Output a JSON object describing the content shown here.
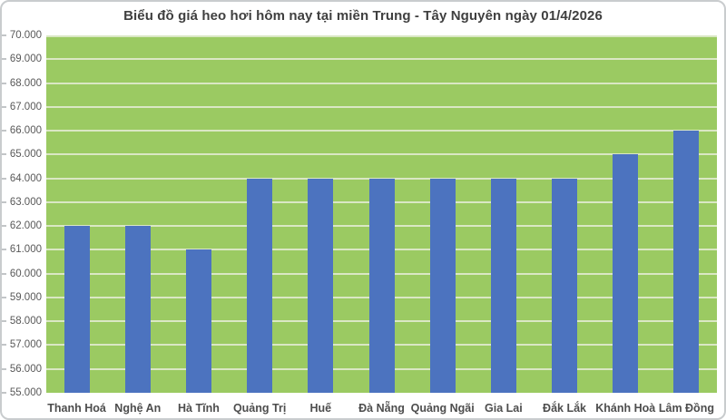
{
  "window": {
    "background": "#ffffff",
    "frame_border_color": "#c9ccce"
  },
  "chart_data": {
    "type": "bar",
    "title": "Biểu đồ giá heo hơi hôm nay tại miền Trung - Tây Nguyên ngày 01/4/2026",
    "categories": [
      "Thanh Hoá",
      "Nghệ An",
      "Hà Tĩnh",
      "Quảng Trị",
      "Huế",
      "Đà Nẵng",
      "Quảng Ngãi",
      "Gia Lai",
      "Đắk Lắk",
      "Khánh Hoà",
      "Lâm Đồng"
    ],
    "values": [
      62000,
      62000,
      61000,
      64000,
      64000,
      64000,
      64000,
      64000,
      64000,
      65000,
      66000
    ],
    "xlabel": "",
    "ylabel": "",
    "ylim": [
      55000,
      70000
    ],
    "ytick_step": 1000,
    "ytick_labels": [
      "70.000",
      "69.000",
      "68.000",
      "67.000",
      "66.000",
      "65.000",
      "64.000",
      "63.000",
      "62.000",
      "61.000",
      "60.000",
      "59.000",
      "58.000",
      "57.000",
      "56.000",
      "55.000"
    ],
    "grid": true,
    "legend": false,
    "colors": {
      "bar": "#4c73bf",
      "plot_background": "#9bca62",
      "gridline": "#dae7c4",
      "title_text": "#3f3f3f",
      "y_axis_text": "#595959",
      "x_axis_text": "#4d4d4d"
    }
  }
}
